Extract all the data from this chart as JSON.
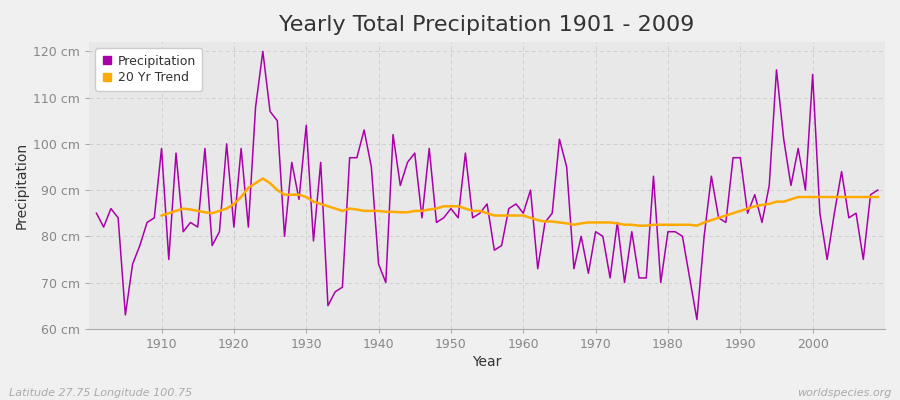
{
  "title": "Yearly Total Precipitation 1901 - 2009",
  "xlabel": "Year",
  "ylabel": "Precipitation",
  "subtitle": "Latitude 27.75 Longitude 100.75",
  "watermark": "worldspecies.org",
  "years": [
    1901,
    1902,
    1903,
    1904,
    1905,
    1906,
    1907,
    1908,
    1909,
    1910,
    1911,
    1912,
    1913,
    1914,
    1915,
    1916,
    1917,
    1918,
    1919,
    1920,
    1921,
    1922,
    1923,
    1924,
    1925,
    1926,
    1927,
    1928,
    1929,
    1930,
    1931,
    1932,
    1933,
    1934,
    1935,
    1936,
    1937,
    1938,
    1939,
    1940,
    1941,
    1942,
    1943,
    1944,
    1945,
    1946,
    1947,
    1948,
    1949,
    1950,
    1951,
    1952,
    1953,
    1954,
    1955,
    1956,
    1957,
    1958,
    1959,
    1960,
    1961,
    1962,
    1963,
    1964,
    1965,
    1966,
    1967,
    1968,
    1969,
    1970,
    1971,
    1972,
    1973,
    1974,
    1975,
    1976,
    1977,
    1978,
    1979,
    1980,
    1981,
    1982,
    1983,
    1984,
    1985,
    1986,
    1987,
    1988,
    1989,
    1990,
    1991,
    1992,
    1993,
    1994,
    1995,
    1996,
    1997,
    1998,
    1999,
    2000,
    2001,
    2002,
    2003,
    2004,
    2005,
    2006,
    2007,
    2008,
    2009
  ],
  "precip": [
    85,
    82,
    86,
    84,
    63,
    74,
    78,
    83,
    84,
    99,
    75,
    98,
    81,
    83,
    82,
    99,
    78,
    81,
    100,
    82,
    99,
    82,
    108,
    120,
    107,
    105,
    80,
    96,
    88,
    104,
    79,
    96,
    65,
    68,
    69,
    97,
    97,
    103,
    95,
    74,
    70,
    102,
    91,
    96,
    98,
    84,
    99,
    83,
    84,
    86,
    84,
    98,
    84,
    85,
    87,
    77,
    78,
    86,
    87,
    85,
    90,
    73,
    83,
    85,
    101,
    95,
    73,
    80,
    72,
    81,
    80,
    71,
    83,
    70,
    81,
    71,
    71,
    93,
    70,
    81,
    81,
    80,
    71,
    62,
    80,
    93,
    84,
    83,
    97,
    97,
    85,
    89,
    83,
    91,
    116,
    101,
    91,
    99,
    90,
    115,
    85,
    75,
    85,
    94,
    84,
    85,
    75,
    89,
    90
  ],
  "trend_years": [
    1910,
    1911,
    1912,
    1913,
    1914,
    1915,
    1916,
    1917,
    1918,
    1919,
    1920,
    1921,
    1922,
    1923,
    1924,
    1925,
    1926,
    1927,
    1928,
    1929,
    1930,
    1931,
    1932,
    1933,
    1934,
    1935,
    1936,
    1937,
    1938,
    1939,
    1940,
    1941,
    1942,
    1943,
    1944,
    1945,
    1946,
    1947,
    1948,
    1949,
    1950,
    1951,
    1952,
    1953,
    1954,
    1955,
    1956,
    1957,
    1958,
    1959,
    1960,
    1961,
    1962,
    1963,
    1964,
    1965,
    1966,
    1967,
    1968,
    1969,
    1970,
    1971,
    1972,
    1973,
    1974,
    1975,
    1976,
    1977,
    1978,
    1979,
    1980,
    1981,
    1982,
    1983,
    1984,
    1985,
    1986,
    1987,
    1988,
    1989,
    1990,
    1991,
    1992,
    1993,
    1994,
    1995,
    1996,
    1997,
    1998,
    1999,
    2000,
    2001,
    2002,
    2003,
    2004,
    2005,
    2006,
    2007,
    2008,
    2009
  ],
  "trend": [
    84.5,
    85.0,
    85.5,
    86.0,
    85.8,
    85.5,
    85.2,
    85.0,
    85.5,
    86.0,
    87.0,
    88.5,
    90.5,
    91.5,
    92.5,
    91.5,
    90.0,
    89.0,
    89.0,
    89.0,
    88.5,
    87.5,
    87.0,
    86.5,
    86.0,
    85.5,
    86.0,
    85.8,
    85.5,
    85.5,
    85.5,
    85.3,
    85.3,
    85.2,
    85.2,
    85.5,
    85.5,
    85.8,
    86.0,
    86.5,
    86.5,
    86.5,
    86.0,
    85.5,
    85.5,
    85.0,
    84.5,
    84.5,
    84.5,
    84.5,
    84.5,
    84.0,
    83.5,
    83.2,
    83.2,
    83.0,
    82.8,
    82.5,
    82.8,
    83.0,
    83.0,
    83.0,
    83.0,
    82.8,
    82.5,
    82.5,
    82.3,
    82.3,
    82.5,
    82.5,
    82.5,
    82.5,
    82.5,
    82.5,
    82.3,
    83.0,
    83.5,
    84.0,
    84.5,
    85.0,
    85.5,
    86.0,
    86.5,
    86.8,
    87.0,
    87.5,
    87.5,
    88.0,
    88.5,
    88.5,
    88.5,
    88.5,
    88.5,
    88.5,
    88.5,
    88.5,
    88.5,
    88.5,
    88.5,
    88.5
  ],
  "precip_color": "#aa00aa",
  "trend_color": "#ffaa00",
  "fig_bg_color": "#f0f0f0",
  "plot_bg_color": "#e8e8e8",
  "grid_color": "#d0d0d0",
  "ylim": [
    60,
    122
  ],
  "yticks": [
    60,
    70,
    80,
    90,
    100,
    110,
    120
  ],
  "ytick_labels": [
    "60 cm",
    "70 cm",
    "80 cm",
    "90 cm",
    "100 cm",
    "110 cm",
    "120 cm"
  ],
  "xticks": [
    1910,
    1920,
    1930,
    1940,
    1950,
    1960,
    1970,
    1980,
    1990,
    2000
  ],
  "title_fontsize": 16,
  "axis_fontsize": 10,
  "tick_fontsize": 9,
  "legend_fontsize": 9
}
